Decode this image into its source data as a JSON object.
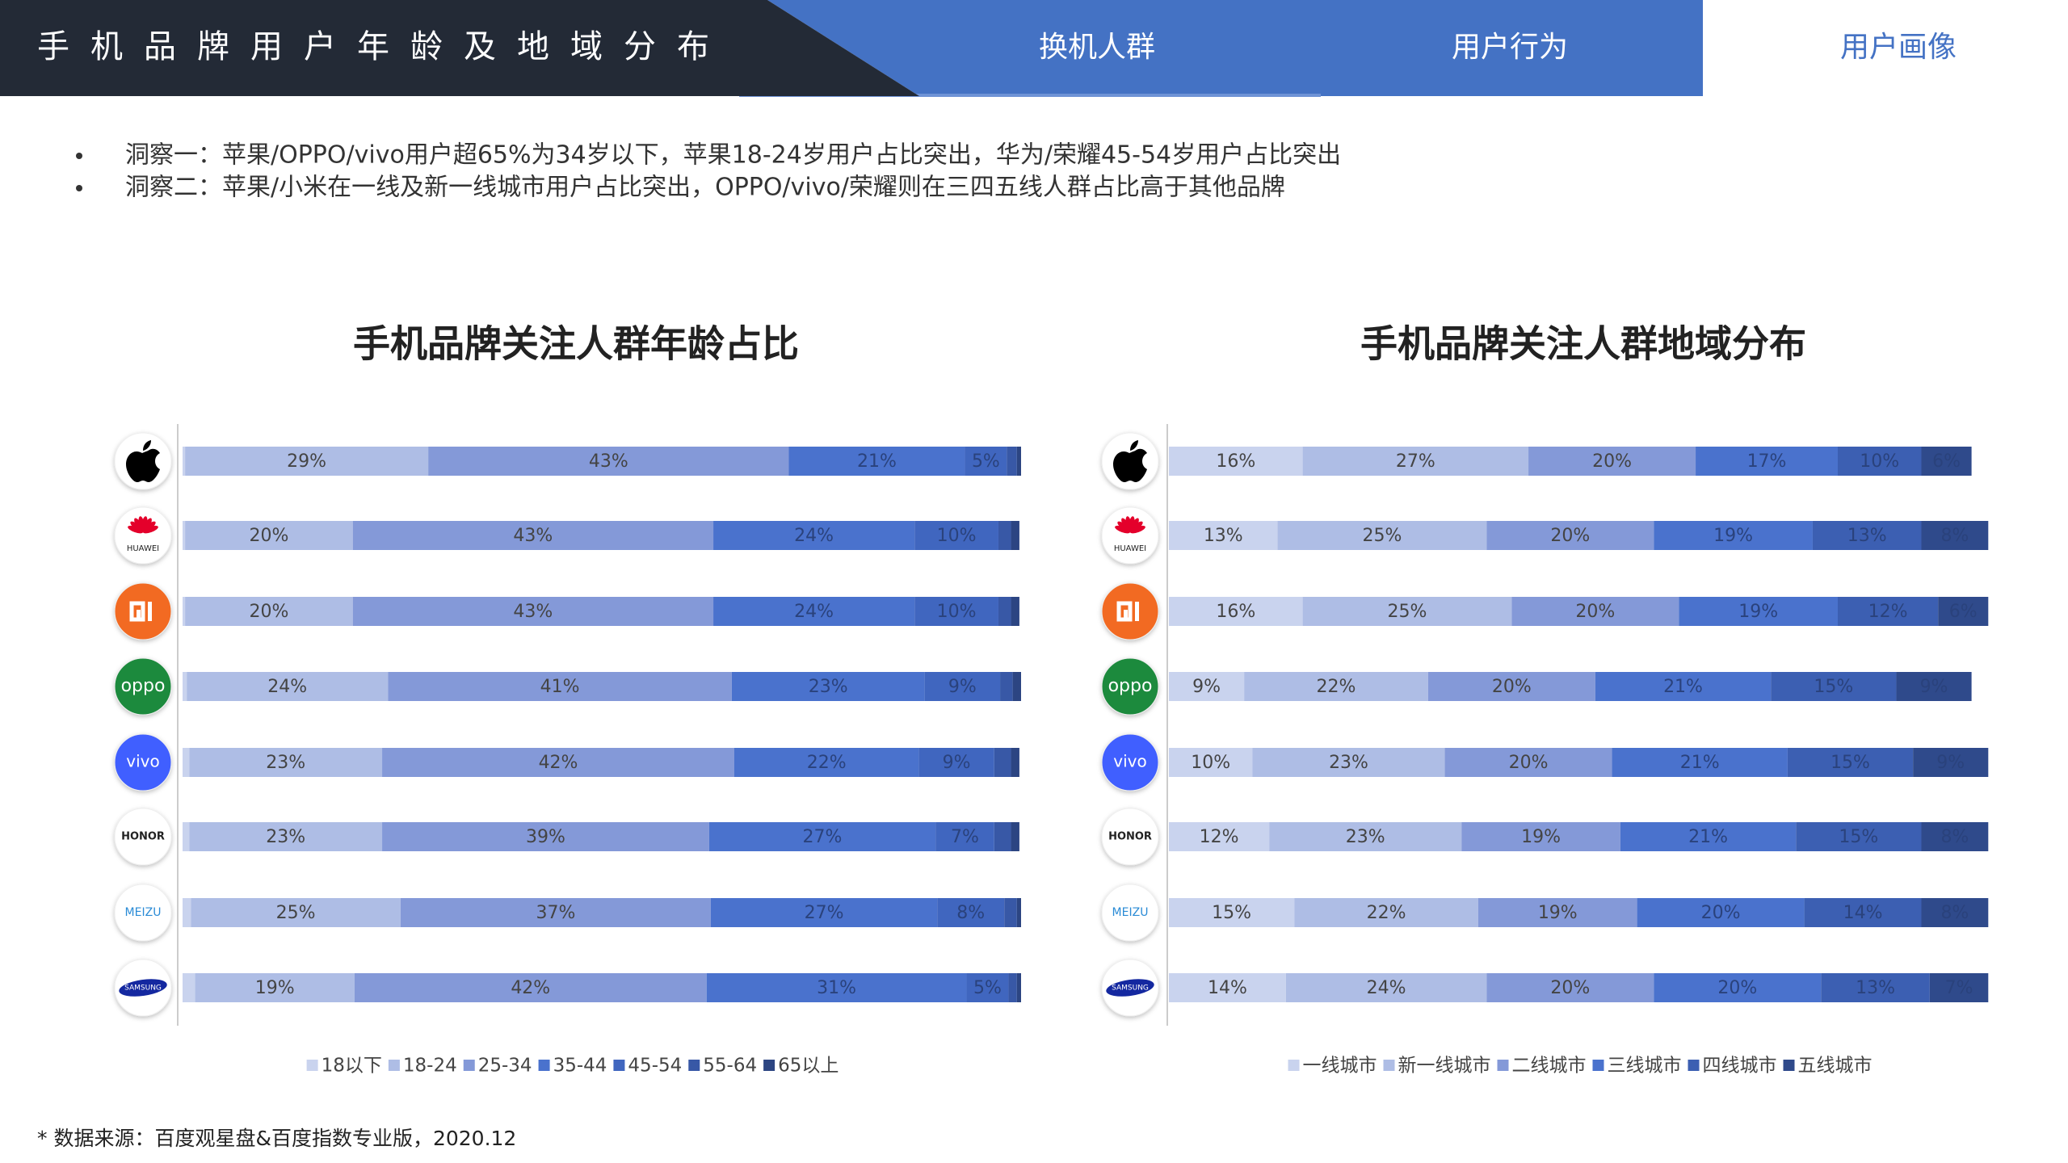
{
  "header": {
    "title": "手机品牌用户年龄及地域分布",
    "tabs": [
      "换机人群",
      "用户行为",
      "用户画像"
    ]
  },
  "insights": [
    "洞察一：苹果/OPPO/vivo用户超65%为34岁以下，苹果18-24岁用户占比突出，华为/荣耀45-54岁用户占比突出",
    "洞察二：苹果/小米在一线及新一线城市用户占比突出，OPPO/vivo/荣耀则在三四五线人群占比高于其他品牌"
  ],
  "chart_data": [
    {
      "type": "bar",
      "orientation": "horizontal",
      "stacked": true,
      "title": "手机品牌关注人群年龄占比",
      "categories": [
        null,
        "HUAWEI",
        null,
        "oppo",
        "vivo",
        "HONOR",
        "MEIZU",
        "SAMSUNG"
      ],
      "xlim": [
        0,
        100
      ],
      "series": [
        {
          "name": "18以下",
          "color": "#c9d3ee",
          "values": [
            0.3,
            0.3,
            0.3,
            0.5,
            0.8,
            0.8,
            1,
            1.5
          ],
          "value_labels": [
            null,
            null,
            null,
            null,
            null,
            null,
            null,
            null
          ]
        },
        {
          "name": "18-24",
          "color": "#aebde5",
          "values": [
            29,
            20,
            20,
            24,
            23,
            23,
            25,
            19
          ],
          "value_labels": [
            "29%",
            "20%",
            "20%",
            "24%",
            "23%",
            "23%",
            "25%",
            "19%"
          ]
        },
        {
          "name": "25-34",
          "color": "#8499d8",
          "values": [
            43,
            43,
            43,
            41,
            42,
            39,
            37,
            42
          ],
          "value_labels": [
            "43%",
            "43%",
            "43%",
            "41%",
            "42%",
            "39%",
            "37%",
            "42%"
          ]
        },
        {
          "name": "35-44",
          "color": "#4a72cd",
          "values": [
            21,
            24,
            24,
            23,
            22,
            27,
            27,
            31
          ],
          "value_labels": [
            "21%",
            "24%",
            "24%",
            "23%",
            "22%",
            "27%",
            "27%",
            "31%"
          ]
        },
        {
          "name": "45-54",
          "color": "#4066bf",
          "values": [
            5,
            10,
            10,
            9,
            9,
            7,
            8,
            5
          ],
          "value_labels": [
            "5%",
            "10%",
            "10%",
            "9%",
            "9%",
            "7%",
            "8%",
            "5%"
          ]
        },
        {
          "name": "55-64",
          "color": "#3858a6",
          "values": [
            1.2,
            1.5,
            1.5,
            1.5,
            2,
            2,
            1.5,
            1
          ],
          "value_labels": [
            null,
            null,
            null,
            null,
            null,
            null,
            null,
            null
          ]
        },
        {
          "name": "65以上",
          "color": "#2c4582",
          "values": [
            0.5,
            1,
            1,
            1,
            1,
            1,
            0.5,
            0.5
          ],
          "value_labels": [
            null,
            null,
            null,
            null,
            null,
            null,
            null,
            null
          ]
        }
      ],
      "legend": "bottom"
    },
    {
      "type": "bar",
      "orientation": "horizontal",
      "stacked": true,
      "title": "手机品牌关注人群地域分布",
      "categories": [
        null,
        "HUAWEI",
        null,
        "oppo",
        "vivo",
        "HONOR",
        "MEIZU",
        "SAMSUNG"
      ],
      "xlim": [
        0,
        100
      ],
      "series": [
        {
          "name": "一线城市",
          "color": "#c9d3ee",
          "values": [
            16,
            13,
            16,
            9,
            10,
            12,
            15,
            14
          ],
          "value_labels": [
            "16%",
            "13%",
            "16%",
            "9%",
            "10%",
            "12%",
            "15%",
            "14%"
          ]
        },
        {
          "name": "新一线城市",
          "color": "#aebde5",
          "values": [
            27,
            25,
            25,
            22,
            23,
            23,
            22,
            24
          ],
          "value_labels": [
            "27%",
            "25%",
            "25%",
            "22%",
            "23%",
            "23%",
            "22%",
            "24%"
          ]
        },
        {
          "name": "二线城市",
          "color": "#8499d8",
          "values": [
            20,
            20,
            20,
            20,
            20,
            19,
            19,
            20
          ],
          "value_labels": [
            "20%",
            "20%",
            "20%",
            "20%",
            "20%",
            "19%",
            "19%",
            "20%"
          ]
        },
        {
          "name": "三线城市",
          "color": "#4a72cd",
          "values": [
            17,
            19,
            19,
            21,
            21,
            21,
            20,
            20
          ],
          "value_labels": [
            "17%",
            "19%",
            "19%",
            "21%",
            "21%",
            "21%",
            "20%",
            "20%"
          ]
        },
        {
          "name": "四线城市",
          "color": "#3c5fb2",
          "values": [
            10,
            13,
            12,
            15,
            15,
            15,
            14,
            13
          ],
          "value_labels": [
            "10%",
            "13%",
            "12%",
            "15%",
            "15%",
            "15%",
            "14%",
            "13%"
          ]
        },
        {
          "name": "五线城市",
          "color": "#2f4a8b",
          "values": [
            6,
            8,
            6,
            9,
            9,
            8,
            8,
            7
          ],
          "value_labels": [
            "6%",
            "8%",
            "6%",
            "9%",
            "9%",
            "8%",
            "8%",
            "7%"
          ]
        }
      ],
      "legend": "bottom"
    }
  ],
  "source": "* 数据来源：百度观星盘&百度指数专业版，2020.12"
}
